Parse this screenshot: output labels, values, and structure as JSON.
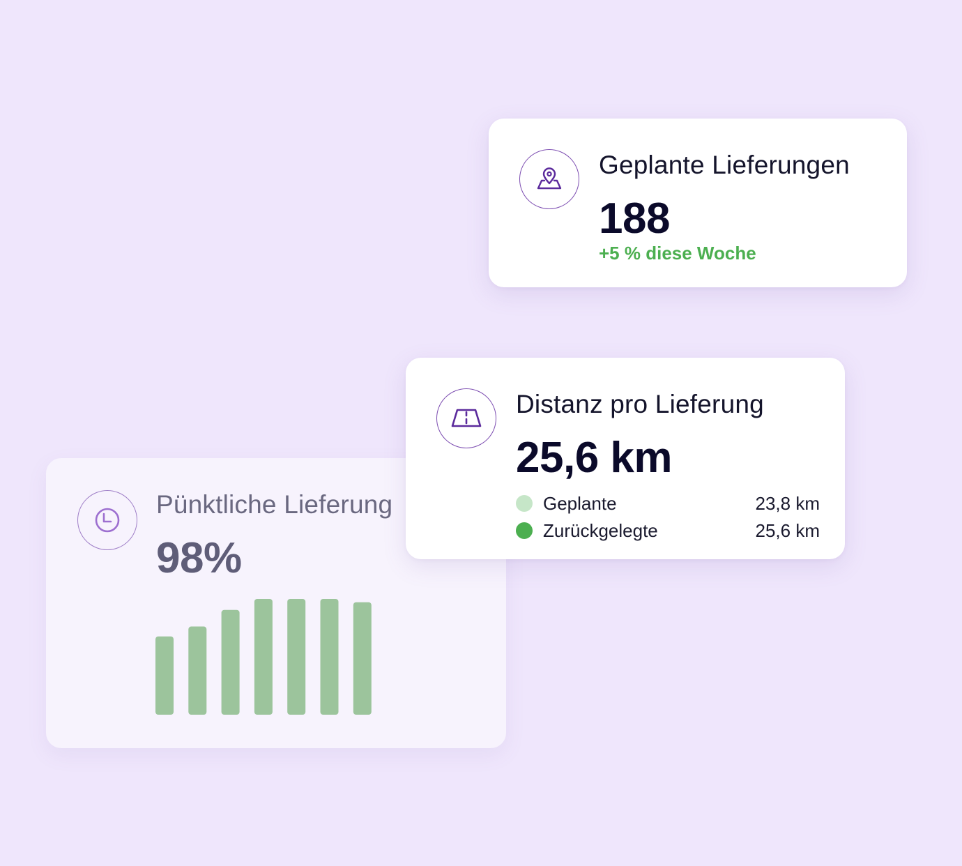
{
  "cards": {
    "on_time": {
      "title": "Pünktliche Lieferung",
      "value": "98%",
      "icon": "clock-icon",
      "bar_color": "#9cc49c"
    },
    "planned": {
      "title": "Geplante Lieferungen",
      "value": "188",
      "change": "+5 % diese Woche",
      "change_color": "#4caf50",
      "icon": "map-pin-icon"
    },
    "distance": {
      "title": "Distanz pro Lieferung",
      "value": "25,6 km",
      "icon": "road-icon",
      "legend": [
        {
          "label": "Geplante",
          "value": "23,8 km",
          "color": "#c6e6c8"
        },
        {
          "label": "Zurückgelegte",
          "value": "25,6 km",
          "color": "#4caf50"
        }
      ]
    }
  },
  "chart_data": {
    "type": "bar",
    "values": [
      7.1,
      8.0,
      9.5,
      10.5,
      10.5,
      10.5,
      10.2
    ]
  }
}
